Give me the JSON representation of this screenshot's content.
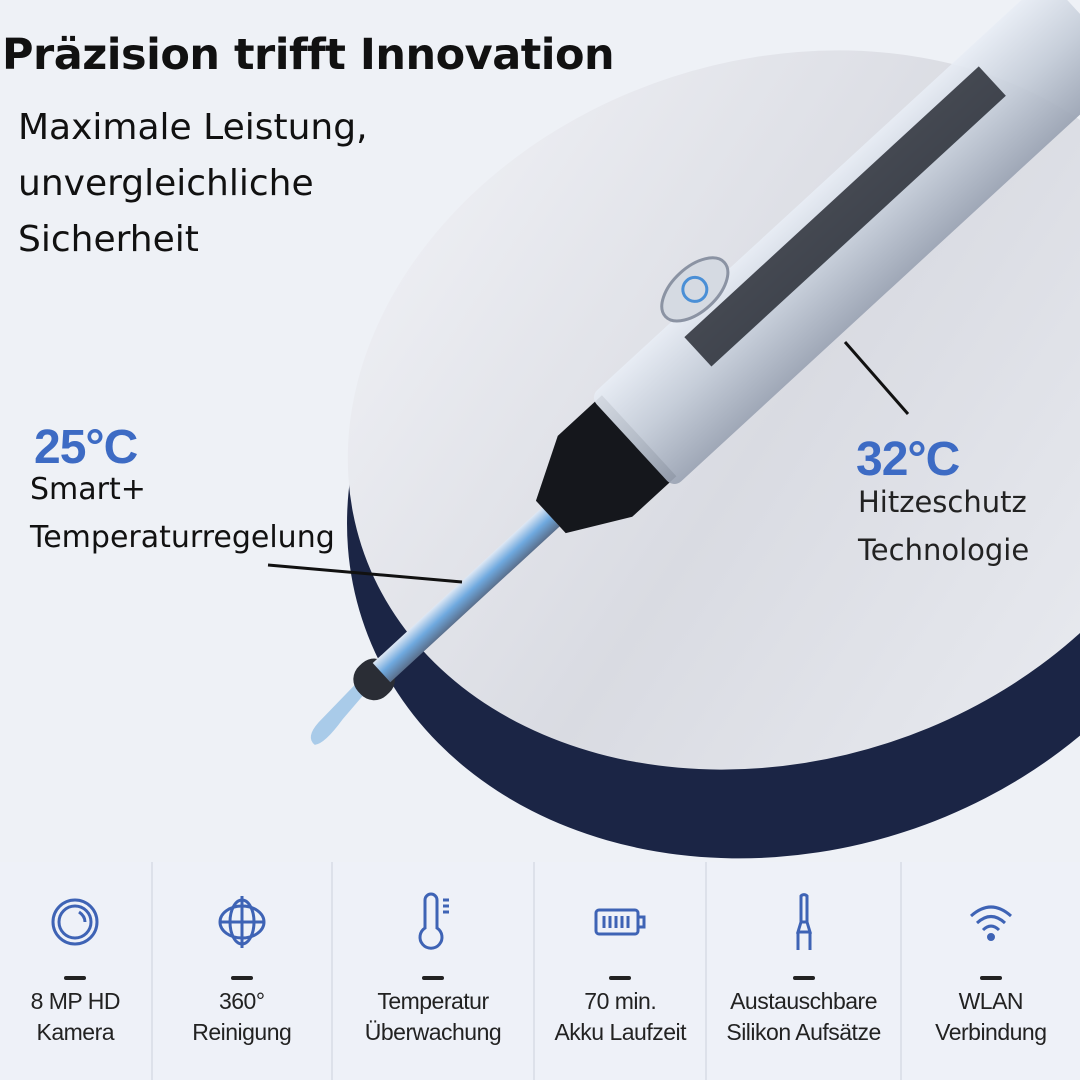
{
  "headline": {
    "title": "Präzision trifft Innovation",
    "subtitle": "Maximale Leistung, unvergleichliche Sicherheit"
  },
  "callouts": [
    {
      "temperature": "25°C",
      "line1": "Smart+",
      "line2": "Temperaturregelung"
    },
    {
      "temperature": "32°C",
      "line1": "Hitzeschutz",
      "line2": "Technologie"
    }
  ],
  "features": [
    {
      "icon": "camera-lens-icon",
      "line1": "8 MP HD",
      "line2": "Kamera"
    },
    {
      "icon": "rotation-360-icon",
      "line1": "360°",
      "line2": "Reinigung"
    },
    {
      "icon": "thermometer-icon",
      "line1": "Temperatur",
      "line2": "Überwachung"
    },
    {
      "icon": "battery-icon",
      "line1": "70 min.",
      "line2": "Akku Laufzeit"
    },
    {
      "icon": "ear-pick-tip-icon",
      "line1": "Austauschbare",
      "line2": "Silikon Aufsätze"
    },
    {
      "icon": "wifi-icon",
      "line1": "WLAN",
      "line2": "Verbindung"
    }
  ],
  "colors": {
    "accent": "#3d6bc4",
    "icon": "#3e63b5",
    "disc_rim": "#1b2545",
    "background": "#eef1f6"
  }
}
